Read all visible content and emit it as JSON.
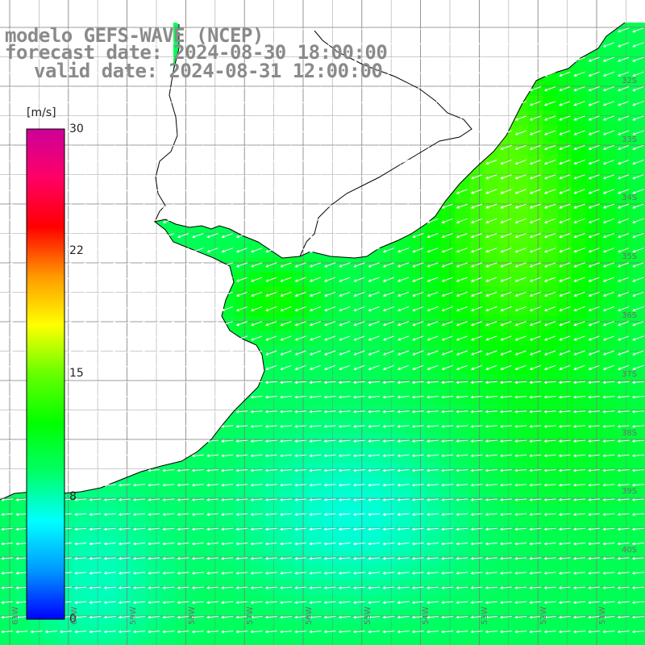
{
  "title": {
    "line1": "modelo GEFS-WAVE (NCEP)",
    "line2": "forecast date: 2024-08-30 18:00:00",
    "line3": "valid date: 2024-08-31 12:00:00"
  },
  "colorbar": {
    "unit": "[m/s]",
    "ticks": [
      "30",
      "22",
      "15",
      "8",
      "0"
    ],
    "tick_values": [
      30,
      22,
      15,
      8,
      0
    ],
    "range": [
      0,
      30
    ],
    "colors": [
      "#0000ff",
      "#0099ff",
      "#00ffff",
      "#00ff66",
      "#00ff00",
      "#66ff00",
      "#ffff00",
      "#ff9900",
      "#ff0000",
      "#ff0066",
      "#cc0099"
    ]
  },
  "map": {
    "latitude_labels": [
      "32S",
      "33S",
      "34S",
      "35S",
      "36S",
      "37S",
      "38S",
      "39S",
      "40S"
    ],
    "latitudes": [
      -32,
      -33,
      -34,
      -35,
      -36,
      -37,
      -38,
      -39,
      -40
    ],
    "longitude_labels": [
      "61W",
      "60W",
      "59W",
      "58W",
      "57W",
      "56W",
      "55W",
      "54W",
      "53W",
      "52W",
      "51W"
    ],
    "longitudes": [
      -61,
      -60,
      -59,
      -58,
      -57,
      -56,
      -55,
      -54,
      -53,
      -52,
      -51
    ],
    "field": "wind speed",
    "grid": true,
    "land_color": "#ffffff",
    "coast_color": "#000000"
  }
}
